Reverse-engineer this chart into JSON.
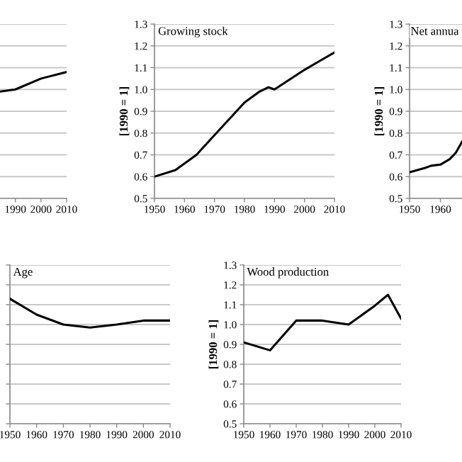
{
  "chart_data": [
    {
      "type": "line",
      "x": [
        1984,
        1990,
        2000,
        2010
      ],
      "values": [
        0.99,
        1.0,
        1.05,
        1.08
      ],
      "color": "#000000",
      "xlim": [
        1984,
        2010
      ],
      "ylim": [
        0.5,
        1.3
      ],
      "xticks": [
        1990,
        2000,
        2010
      ],
      "yticks": [
        {
          "value": 0.5,
          "label": null
        },
        {
          "value": 0.6,
          "label": null
        },
        {
          "value": 0.7,
          "label": null
        },
        {
          "value": 0.8,
          "label": null
        },
        {
          "value": 0.9,
          "label": null
        },
        {
          "value": 1.0,
          "label": null
        },
        {
          "value": 1.1,
          "label": null
        },
        {
          "value": 1.2,
          "label": null
        },
        {
          "value": 1.3,
          "label": null
        }
      ],
      "grid": "y",
      "tick_labels": "x"
    },
    {
      "type": "line",
      "title": "Growing stock",
      "ylabel": "[1990 = 1]",
      "x": [
        1950,
        1957,
        1964,
        1970,
        1980,
        1985,
        1988,
        1990,
        2000,
        2005,
        2010
      ],
      "values": [
        0.6,
        0.63,
        0.7,
        0.79,
        0.94,
        0.99,
        1.01,
        1.0,
        1.09,
        1.13,
        1.17
      ],
      "color": "#000000",
      "xlim": [
        1950,
        2010
      ],
      "ylim": [
        0.5,
        1.3
      ],
      "xticks": [
        1950,
        1960,
        1970,
        1980,
        1990,
        2000,
        2010
      ],
      "yticks": [
        {
          "value": 0.5,
          "label": "0.5"
        },
        {
          "value": 0.6,
          "label": "0.6"
        },
        {
          "value": 0.7,
          "label": "0.7"
        },
        {
          "value": 0.8,
          "label": "0.8"
        },
        {
          "value": 0.9,
          "label": "0.9"
        },
        {
          "value": 1.0,
          "label": "1.0"
        },
        {
          "value": 1.1,
          "label": "1.1"
        },
        {
          "value": 1.2,
          "label": "1.2"
        },
        {
          "value": 1.3,
          "label": "1.3"
        }
      ],
      "grid": "y"
    },
    {
      "type": "line",
      "title": "Net annua",
      "ylabel": "[1990 = 1]",
      "x": [
        1950,
        1955,
        1957,
        1960,
        1963,
        1965,
        1967
      ],
      "values": [
        0.62,
        0.64,
        0.65,
        0.655,
        0.68,
        0.71,
        0.76
      ],
      "color": "#000000",
      "xlim": [
        1950,
        1967
      ],
      "ylim": [
        0.5,
        1.3
      ],
      "xticks": [
        1950,
        1960
      ],
      "yticks": [
        {
          "value": 0.5,
          "label": "0.5"
        },
        {
          "value": 0.6,
          "label": "0.6"
        },
        {
          "value": 0.7,
          "label": "0.7"
        },
        {
          "value": 0.8,
          "label": "0.8"
        },
        {
          "value": 0.9,
          "label": "0.9"
        },
        {
          "value": 1.0,
          "label": "1.0"
        },
        {
          "value": 1.1,
          "label": "1.1"
        },
        {
          "value": 1.2,
          "label": "1.2"
        },
        {
          "value": 1.3,
          "label": "1.3"
        }
      ],
      "grid": "y"
    },
    {
      "type": "line",
      "title": "Age",
      "x": [
        1950,
        1960,
        1970,
        1980,
        1990,
        2000,
        2010
      ],
      "values": [
        1.13,
        1.05,
        1.0,
        0.985,
        1.0,
        1.02,
        1.02
      ],
      "color": "#000000",
      "xlim": [
        1950,
        2010
      ],
      "ylim": [
        0.5,
        1.3
      ],
      "xticks": [
        1950,
        1960,
        1970,
        1980,
        1990,
        2000,
        2010
      ],
      "yticks": [
        {
          "value": 0.5,
          "label": null
        },
        {
          "value": 0.6,
          "label": null
        },
        {
          "value": 0.7,
          "label": null
        },
        {
          "value": 0.8,
          "label": null
        },
        {
          "value": 0.9,
          "label": null
        },
        {
          "value": 1.0,
          "label": null
        },
        {
          "value": 1.1,
          "label": null
        },
        {
          "value": 1.2,
          "label": null
        },
        {
          "value": 1.3,
          "label": null
        }
      ],
      "grid": "y",
      "tick_labels": "x"
    },
    {
      "type": "line",
      "title": "Wood production",
      "ylabel": "[1990 = 1]",
      "x": [
        1950,
        1960,
        1970,
        1980,
        1990,
        2000,
        2005,
        2010
      ],
      "values": [
        0.91,
        0.87,
        1.02,
        1.02,
        1.0,
        1.095,
        1.15,
        1.03
      ],
      "color": "#000000",
      "xlim": [
        1950,
        2010
      ],
      "ylim": [
        0.5,
        1.3
      ],
      "xticks": [
        1950,
        1960,
        1970,
        1980,
        1990,
        2000,
        2010
      ],
      "yticks": [
        {
          "value": 0.5,
          "label": "0.5"
        },
        {
          "value": 0.6,
          "label": "0.6"
        },
        {
          "value": 0.7,
          "label": "0.7"
        },
        {
          "value": 0.8,
          "label": "0.8"
        },
        {
          "value": 0.9,
          "label": "0.9"
        },
        {
          "value": 1.0,
          "label": "1.0"
        },
        {
          "value": 1.1,
          "label": "1.1"
        },
        {
          "value": 1.2,
          "label": "1.2"
        },
        {
          "value": 1.3,
          "label": "1.3"
        }
      ],
      "grid": "y"
    }
  ]
}
